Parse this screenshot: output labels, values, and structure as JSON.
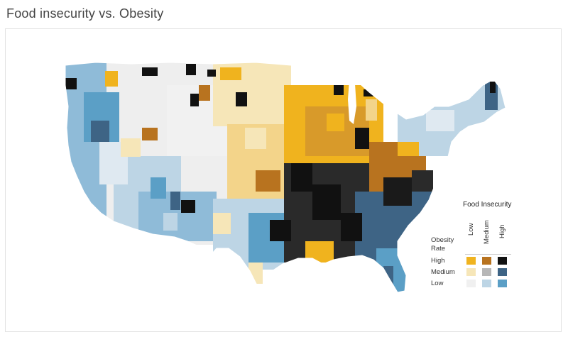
{
  "title": "Food insecurity vs. Obesity",
  "legend": {
    "title": "Food Insecurity",
    "axis_title_line1": "Obesity",
    "axis_title_line2": "Rate",
    "columns": [
      "Low",
      "Medium",
      "High"
    ],
    "rows": [
      "High",
      "Medium",
      "Low"
    ],
    "colors": {
      "high_low": "#f0b31e",
      "high_medium": "#b8731f",
      "high_high": "#111111",
      "medium_low": "#f6e6b8",
      "medium_medium": "#b7b7b7",
      "medium_high": "#3e6485",
      "low_low": "#f0f0f0",
      "low_medium": "#bdd5e5",
      "low_high": "#5b9fc6"
    }
  }
}
